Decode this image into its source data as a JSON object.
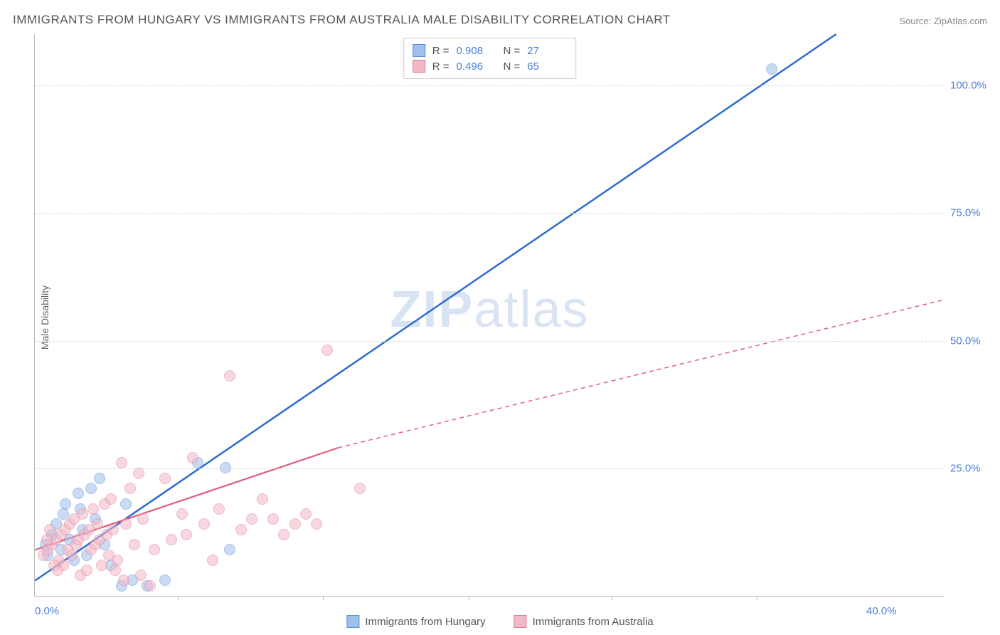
{
  "title": "IMMIGRANTS FROM HUNGARY VS IMMIGRANTS FROM AUSTRALIA MALE DISABILITY CORRELATION CHART",
  "source_prefix": "Source: ",
  "source_name": "ZipAtlas.com",
  "y_axis_label": "Male Disability",
  "watermark": {
    "a": "ZIP",
    "b": "atlas"
  },
  "chart": {
    "type": "scatter+trend",
    "background_color": "#ffffff",
    "grid_color": "#d8d8d8",
    "axis_color": "#bbbbbb",
    "tick_color": "#4a7fd6",
    "xlim": [
      0,
      42
    ],
    "ylim": [
      0,
      110
    ],
    "xticks": [
      0,
      40
    ],
    "xtick_labels": [
      "0.0%",
      "40.0%"
    ],
    "xtick_minor": [
      6.6,
      13.3,
      20,
      26.6,
      33.3
    ],
    "yticks": [
      25,
      50,
      75,
      100
    ],
    "ytick_labels": [
      "25.0%",
      "50.0%",
      "75.0%",
      "100.0%"
    ],
    "point_radius": 8,
    "point_opacity": 0.55,
    "series": [
      {
        "name": "Immigrants from Hungary",
        "fill": "#9fc0ea",
        "stroke": "#5a8fd6",
        "trend": {
          "x1": 0,
          "y1": 3,
          "x2": 37,
          "y2": 110,
          "width": 2.5,
          "dash": "none",
          "color": "#2d6cd0",
          "extrapolate": false
        },
        "R": "0.908",
        "N": "27",
        "points": [
          [
            0.5,
            10
          ],
          [
            0.8,
            12
          ],
          [
            1.0,
            14
          ],
          [
            1.2,
            9
          ],
          [
            1.4,
            18
          ],
          [
            1.6,
            11
          ],
          [
            1.8,
            7
          ],
          [
            2.0,
            20
          ],
          [
            2.2,
            13
          ],
          [
            2.4,
            8
          ],
          [
            2.6,
            21
          ],
          [
            2.8,
            15
          ],
          [
            3.0,
            23
          ],
          [
            3.2,
            10
          ],
          [
            3.5,
            6
          ],
          [
            4.0,
            2
          ],
          [
            4.5,
            3
          ],
          [
            5.2,
            2
          ],
          [
            6.0,
            3
          ],
          [
            7.5,
            26
          ],
          [
            8.8,
            25
          ],
          [
            9.0,
            9
          ],
          [
            4.2,
            18
          ],
          [
            2.1,
            17
          ],
          [
            1.3,
            16
          ],
          [
            0.6,
            8
          ],
          [
            34,
            103
          ]
        ]
      },
      {
        "name": "Immigrants from Australia",
        "fill": "#f3b8c6",
        "stroke": "#e07f9a",
        "trend": {
          "x1": 0,
          "y1": 9,
          "x2": 14,
          "y2": 29,
          "width": 2.2,
          "dash": "none",
          "color": "#e0607f",
          "extrapolate": true,
          "ext_x2": 42,
          "ext_y2": 58,
          "ext_dash": "6 5"
        },
        "R": "0.496",
        "N": "65",
        "points": [
          [
            0.4,
            8
          ],
          [
            0.6,
            9
          ],
          [
            0.8,
            10
          ],
          [
            1.0,
            11
          ],
          [
            1.1,
            7
          ],
          [
            1.2,
            12
          ],
          [
            1.3,
            6
          ],
          [
            1.4,
            13
          ],
          [
            1.5,
            9
          ],
          [
            1.6,
            14
          ],
          [
            1.7,
            8
          ],
          [
            1.8,
            15
          ],
          [
            1.9,
            10
          ],
          [
            2.0,
            11
          ],
          [
            2.1,
            4
          ],
          [
            2.2,
            16
          ],
          [
            2.3,
            12
          ],
          [
            2.4,
            5
          ],
          [
            2.5,
            13
          ],
          [
            2.6,
            9
          ],
          [
            2.7,
            17
          ],
          [
            2.8,
            10
          ],
          [
            2.9,
            14
          ],
          [
            3.0,
            11
          ],
          [
            3.1,
            6
          ],
          [
            3.2,
            18
          ],
          [
            3.3,
            12
          ],
          [
            3.4,
            8
          ],
          [
            3.5,
            19
          ],
          [
            3.6,
            13
          ],
          [
            3.8,
            7
          ],
          [
            4.0,
            26
          ],
          [
            4.2,
            14
          ],
          [
            4.4,
            21
          ],
          [
            4.6,
            10
          ],
          [
            4.8,
            24
          ],
          [
            5.0,
            15
          ],
          [
            5.3,
            2
          ],
          [
            5.5,
            9
          ],
          [
            6.0,
            23
          ],
          [
            6.3,
            11
          ],
          [
            6.8,
            16
          ],
          [
            7.0,
            12
          ],
          [
            7.3,
            27
          ],
          [
            7.8,
            14
          ],
          [
            8.2,
            7
          ],
          [
            8.5,
            17
          ],
          [
            9.0,
            43
          ],
          [
            9.5,
            13
          ],
          [
            10,
            15
          ],
          [
            10.5,
            19
          ],
          [
            11,
            15
          ],
          [
            11.5,
            12
          ],
          [
            12,
            14
          ],
          [
            12.5,
            16
          ],
          [
            13,
            14
          ],
          [
            13.5,
            48
          ],
          [
            15,
            21
          ],
          [
            3.7,
            5
          ],
          [
            4.1,
            3
          ],
          [
            4.9,
            4
          ],
          [
            1.05,
            5
          ],
          [
            0.9,
            6
          ],
          [
            0.55,
            11
          ],
          [
            0.7,
            13
          ]
        ]
      }
    ]
  },
  "legend_top": {
    "r_label": "R =",
    "n_label": "N ="
  },
  "legend_bottom": [
    {
      "swatch_fill": "#9fc0ea",
      "swatch_stroke": "#5a8fd6",
      "label": "Immigrants from Hungary"
    },
    {
      "swatch_fill": "#f3b8c6",
      "swatch_stroke": "#e07f9a",
      "label": "Immigrants from Australia"
    }
  ]
}
